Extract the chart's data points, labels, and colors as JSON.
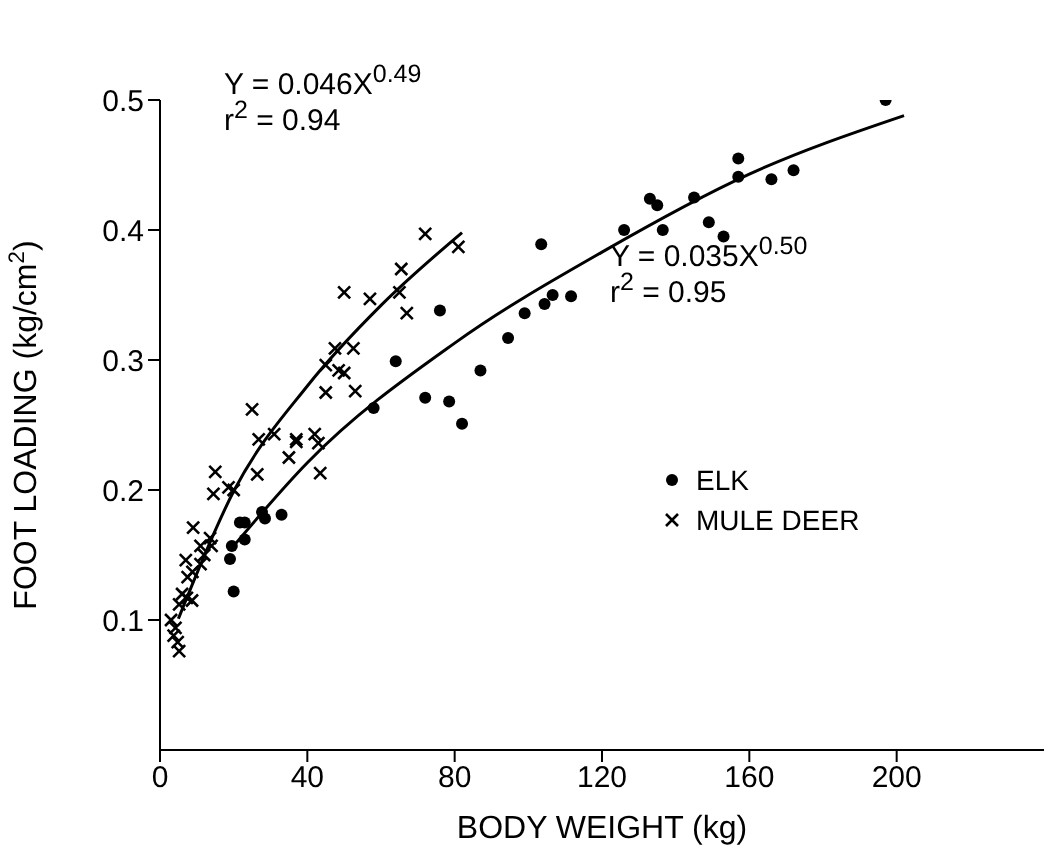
{
  "chart_data": {
    "type": "scatter",
    "xlabel": "BODY WEIGHT (kg)",
    "ylabel": "FOOT LOADING (kg/cm$^{2}$)",
    "xlim": [
      0,
      240
    ],
    "xticks": [
      0,
      40,
      80,
      120,
      160,
      200
    ],
    "ylim": [
      0,
      0.5
    ],
    "yticks": [
      0.1,
      0.2,
      0.3,
      0.4,
      0.5
    ],
    "grid": false,
    "legend": "right",
    "annotations": [
      "Y = 0.046X$^{0.49}$",
      "r$^{2}$ = 0.94",
      "Y = 0.035X$^{0.50}$",
      "r$^{2}$ = 0.95"
    ],
    "series": [
      {
        "name": "ELK",
        "type": "scatter",
        "marker": "circle",
        "color": "#000000",
        "x": [
          19,
          20,
          19.5,
          21.7,
          23,
          23,
          27.7,
          28.5,
          33,
          58,
          64,
          72,
          76,
          78.5,
          82,
          87,
          94.5,
          99,
          103.5,
          104.4,
          106.6,
          111.6,
          126,
          133,
          135,
          136.5,
          145,
          149,
          153,
          157,
          157,
          166,
          172,
          197
        ],
        "values": [
          0.147,
          0.122,
          0.157,
          0.175,
          0.175,
          0.162,
          0.183,
          0.178,
          0.181,
          0.263,
          0.299,
          0.271,
          0.338,
          0.268,
          0.251,
          0.292,
          0.317,
          0.336,
          0.389,
          0.343,
          0.35,
          0.349,
          0.4,
          0.424,
          0.419,
          0.4,
          0.425,
          0.406,
          0.395,
          0.455,
          0.441,
          0.439,
          0.446,
          0.5
        ]
      },
      {
        "name": "MULE DEER",
        "type": "scatter",
        "marker": "cross",
        "color": "#000000",
        "x": [
          3,
          4.2,
          3.7,
          4.8,
          5.2,
          5.2,
          6,
          7.3,
          8.7,
          7.5,
          8.8,
          7,
          11,
          12,
          11,
          14,
          13.6,
          9,
          14.5,
          15,
          18.6,
          20,
          26.4,
          25,
          26.8,
          31,
          35,
          37,
          37,
          42,
          43,
          43.5,
          45,
          45,
          47.5,
          48.5,
          50,
          52.5,
          53,
          50,
          57,
          65,
          67,
          65.5,
          72,
          81
        ],
        "values": [
          0.1,
          0.094,
          0.088,
          0.083,
          0.076,
          0.112,
          0.12,
          0.117,
          0.115,
          0.133,
          0.137,
          0.146,
          0.143,
          0.15,
          0.157,
          0.157,
          0.163,
          0.171,
          0.197,
          0.214,
          0.202,
          0.2,
          0.212,
          0.262,
          0.239,
          0.243,
          0.225,
          0.239,
          0.237,
          0.243,
          0.236,
          0.213,
          0.296,
          0.275,
          0.309,
          0.292,
          0.29,
          0.309,
          0.276,
          0.352,
          0.347,
          0.352,
          0.336,
          0.37,
          0.397,
          0.387
        ]
      },
      {
        "type": "line",
        "marker": "none",
        "line_style": "solid",
        "color": "#000000",
        "x": [
          5,
          20,
          40,
          60,
          82
        ],
        "values": [
          0.101,
          0.199,
          0.28,
          0.342,
          0.398
        ]
      },
      {
        "type": "line",
        "marker": "none",
        "line_style": "solid",
        "color": "#000000",
        "x": [
          20,
          40,
          80,
          120,
          160,
          202
        ],
        "values": [
          0.157,
          0.221,
          0.313,
          0.383,
          0.443,
          0.488
        ]
      }
    ]
  }
}
